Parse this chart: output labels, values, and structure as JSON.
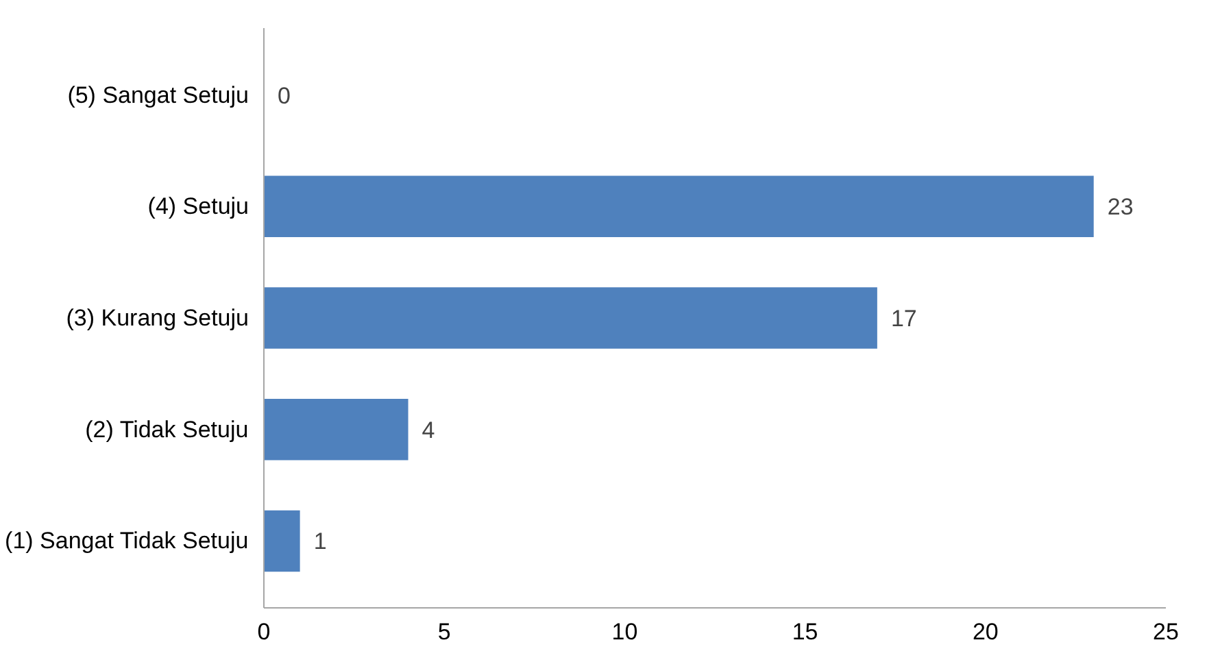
{
  "chart_data": {
    "type": "bar",
    "orientation": "horizontal",
    "categories": [
      "(5) Sangat Setuju",
      "(4) Setuju",
      "(3) Kurang Setuju",
      "(2) Tidak Setuju",
      "(1) Sangat Tidak Setuju"
    ],
    "values": [
      0,
      23,
      17,
      4,
      1
    ],
    "color": "#4f81bd",
    "xlim": [
      0,
      25
    ],
    "xticks": [
      0,
      5,
      10,
      15,
      20,
      25
    ],
    "grid": false,
    "data_labels": true
  }
}
